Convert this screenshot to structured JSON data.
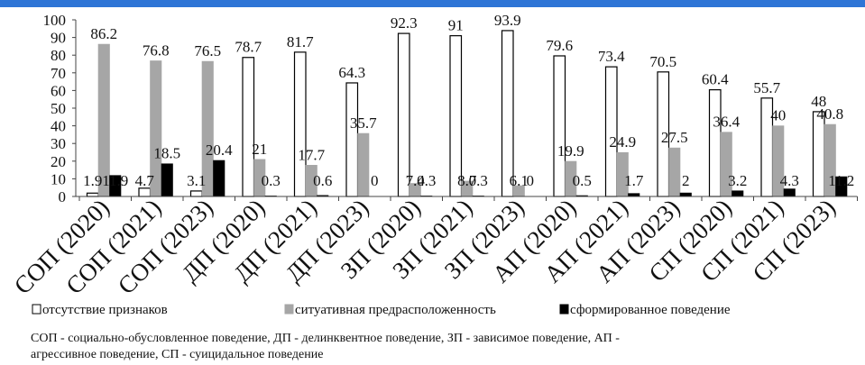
{
  "chart_data": {
    "type": "bar",
    "categories": [
      "СОП (2020)",
      "СОП (2021)",
      "СОП (2023)",
      "ДП (2020)",
      "ДП (2021)",
      "ДП (2023)",
      "ЗП (2020)",
      "ЗП (2021)",
      "ЗП (2023)",
      "АП (2020)",
      "АП (2021)",
      "АП (2023)",
      "СП (2020)",
      "СП (2021)",
      "СП (2023)"
    ],
    "series": [
      {
        "name": "отсутствие признаков",
        "color": "#ffffff",
        "values": [
          1.9,
          4.7,
          3.1,
          78.7,
          81.7,
          64.3,
          92.3,
          91,
          93.9,
          79.6,
          73.4,
          70.5,
          60.4,
          55.7,
          48
        ]
      },
      {
        "name": "ситуативная предрасположенность",
        "color": "#a6a6a6",
        "values": [
          86.2,
          76.8,
          76.5,
          21,
          17.7,
          35.7,
          7.4,
          8.7,
          6.1,
          19.9,
          24.9,
          27.5,
          36.4,
          40,
          40.8
        ]
      },
      {
        "name": "сформированное поведение",
        "color": "#000000",
        "values": [
          11.9,
          18.5,
          20.4,
          0.3,
          0.6,
          0,
          0.3,
          0.3,
          0,
          0.5,
          1.7,
          2,
          3.2,
          4.3,
          11.2
        ]
      }
    ],
    "yticks": [
      "0",
      "10",
      "20",
      "30",
      "40",
      "50",
      "60",
      "70",
      "80",
      "90",
      "100"
    ],
    "ylim": [
      0,
      100
    ],
    "grid": false,
    "legend_position": "bottom"
  },
  "note": {
    "line1": "СОП - социально-обусловленное поведение, ДП - делинквентное поведение, ЗП - зависимое поведение, АП -",
    "line2": "агрессивное поведение, СП - суицидальное поведение"
  }
}
